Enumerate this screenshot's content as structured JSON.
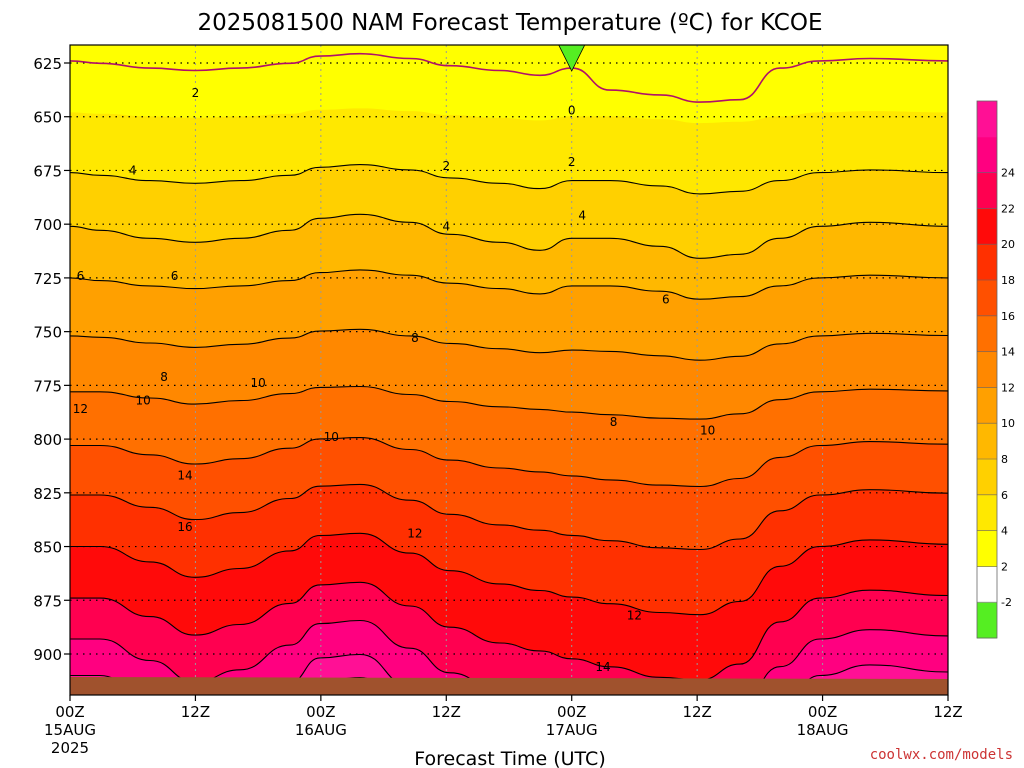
{
  "chart_data": {
    "type": "heatmap",
    "title": "2025081500 NAM Forecast Temperature (ºC) for KCOE",
    "xlabel": "Forecast Time (UTC)",
    "ylabel": "",
    "y_axis": {
      "scale": "pressure",
      "ticks": [
        625,
        650,
        675,
        700,
        725,
        750,
        775,
        800,
        825,
        850,
        875,
        900
      ],
      "ylim": [
        615,
        925
      ]
    },
    "x_axis": {
      "ticks": [
        {
          "label": "00Z",
          "date": "15AUG",
          "year": "2025"
        },
        {
          "label": "12Z",
          "date": "",
          "year": ""
        },
        {
          "label": "00Z",
          "date": "16AUG",
          "year": ""
        },
        {
          "label": "12Z",
          "date": "",
          "year": ""
        },
        {
          "label": "00Z",
          "date": "17AUG",
          "year": ""
        },
        {
          "label": "12Z",
          "date": "",
          "year": ""
        },
        {
          "label": "00Z",
          "date": "18AUG",
          "year": ""
        },
        {
          "label": "12Z",
          "date": "",
          "year": ""
        }
      ]
    },
    "colorbar": {
      "tick_labels": [
        "-2",
        "2",
        "4",
        "6",
        "8",
        "10",
        "12",
        "14",
        "16",
        "18",
        "20",
        "22",
        "24"
      ],
      "colors": [
        "#55ee22",
        "#ffffff",
        "#ffff00",
        "#ffe800",
        "#ffd000",
        "#ffb800",
        "#ffa000",
        "#ff8800",
        "#ff7000",
        "#ff5000",
        "#ff3000",
        "#ff0a0a",
        "#ff0050",
        "#ff0080",
        "#ff1095"
      ]
    },
    "contour_labels": [
      {
        "text": "0",
        "hour": 48,
        "p": 647
      },
      {
        "text": "2",
        "hour": 12,
        "p": 639
      },
      {
        "text": "2",
        "hour": 36,
        "p": 673
      },
      {
        "text": "2",
        "hour": 48,
        "p": 671
      },
      {
        "text": "4",
        "hour": 6,
        "p": 675
      },
      {
        "text": "4",
        "hour": 36,
        "p": 701
      },
      {
        "text": "4",
        "hour": 49,
        "p": 696
      },
      {
        "text": "6",
        "hour": 1,
        "p": 724
      },
      {
        "text": "6",
        "hour": 10,
        "p": 724
      },
      {
        "text": "6",
        "hour": 57,
        "p": 735
      },
      {
        "text": "8",
        "hour": 9,
        "p": 771
      },
      {
        "text": "8",
        "hour": 33,
        "p": 753
      },
      {
        "text": "8",
        "hour": 52,
        "p": 792
      },
      {
        "text": "10",
        "hour": 7,
        "p": 782
      },
      {
        "text": "10",
        "hour": 18,
        "p": 774
      },
      {
        "text": "10",
        "hour": 25,
        "p": 799
      },
      {
        "text": "10",
        "hour": 61,
        "p": 796
      },
      {
        "text": "12",
        "hour": 1,
        "p": 786
      },
      {
        "text": "12",
        "hour": 33,
        "p": 844
      },
      {
        "text": "12",
        "hour": 54,
        "p": 882
      },
      {
        "text": "14",
        "hour": 11,
        "p": 817
      },
      {
        "text": "14",
        "hour": 51,
        "p": 906
      },
      {
        "text": "16",
        "hour": 11,
        "p": 841
      }
    ],
    "freezing_contour_label": "0",
    "credit": "coolwx.com/models",
    "grid": true
  }
}
